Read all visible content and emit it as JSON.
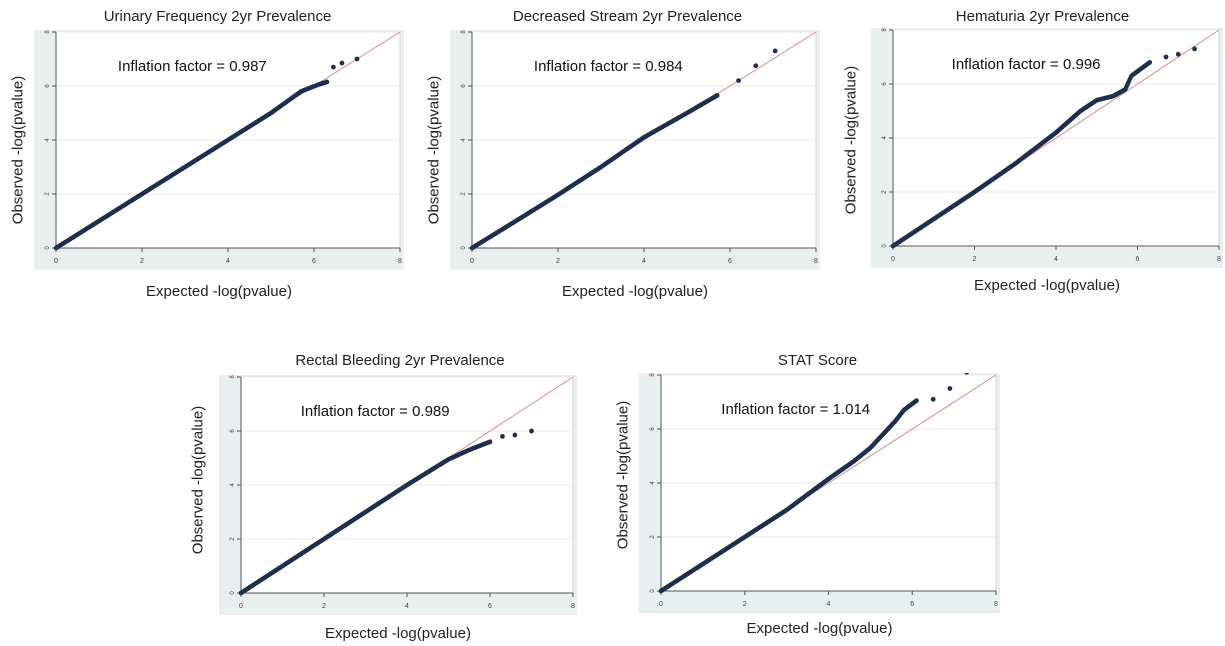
{
  "chart_data": [
    {
      "type": "scatter",
      "title": "Urinary Frequency 2yr Prevalence",
      "xlabel": "Expected -log(pvalue)",
      "ylabel": "Observed -log(pvalue)",
      "annotation": "Inflation factor = 0.987",
      "xlim": [
        0,
        8
      ],
      "ylim": [
        0,
        8
      ],
      "xticks": [
        0,
        2,
        4,
        6,
        8
      ],
      "yticks": [
        0,
        2,
        4,
        6,
        8
      ],
      "reference_line": "y=x",
      "points": [
        [
          0,
          0
        ],
        [
          1,
          1
        ],
        [
          2,
          2
        ],
        [
          3,
          3
        ],
        [
          4,
          4
        ],
        [
          5,
          5
        ],
        [
          5.7,
          5.8
        ],
        [
          6.1,
          6.05
        ],
        [
          6.3,
          6.15
        ],
        [
          6.45,
          6.7
        ],
        [
          6.65,
          6.85
        ],
        [
          7,
          7
        ]
      ]
    },
    {
      "type": "scatter",
      "title": "Decreased Stream 2yr Prevalence",
      "xlabel": "Expected -log(pvalue)",
      "ylabel": "Observed -log(pvalue)",
      "annotation": "Inflation factor = 0.984",
      "xlim": [
        0,
        8
      ],
      "ylim": [
        0,
        8
      ],
      "xticks": [
        0,
        2,
        4,
        6,
        8
      ],
      "yticks": [
        0,
        2,
        4,
        6,
        8
      ],
      "reference_line": "y=x",
      "points": [
        [
          0,
          0
        ],
        [
          1,
          0.98
        ],
        [
          2,
          1.97
        ],
        [
          3,
          3
        ],
        [
          4,
          4.1
        ],
        [
          5,
          5
        ],
        [
          5.7,
          5.65
        ],
        [
          6.2,
          6.2
        ],
        [
          6.6,
          6.75
        ],
        [
          7.05,
          7.3
        ]
      ]
    },
    {
      "type": "scatter",
      "title": "Hematuria 2yr Prevalence",
      "xlabel": "Expected -log(pvalue)",
      "ylabel": "Observed -log(pvalue)",
      "annotation": "Inflation factor = 0.996",
      "xlim": [
        0,
        8
      ],
      "ylim": [
        0,
        8
      ],
      "xticks": [
        0,
        2,
        4,
        6,
        8
      ],
      "yticks": [
        0,
        2,
        4,
        6,
        8
      ],
      "reference_line": "y=x",
      "points": [
        [
          0,
          0
        ],
        [
          1,
          1
        ],
        [
          2,
          2
        ],
        [
          3,
          3.05
        ],
        [
          4,
          4.2
        ],
        [
          4.6,
          5
        ],
        [
          5,
          5.4
        ],
        [
          5.4,
          5.55
        ],
        [
          5.7,
          5.8
        ],
        [
          5.85,
          6.3
        ],
        [
          6.3,
          6.8
        ],
        [
          6.7,
          7
        ],
        [
          7,
          7.1
        ],
        [
          7.4,
          7.3
        ]
      ]
    },
    {
      "type": "scatter",
      "title": "Rectal Bleeding 2yr Prevalence",
      "xlabel": "Expected -log(pvalue)",
      "ylabel": "Observed -log(pvalue)",
      "annotation": "Inflation factor = 0.989",
      "xlim": [
        0,
        8
      ],
      "ylim": [
        0,
        8
      ],
      "xticks": [
        0,
        2,
        4,
        6,
        8
      ],
      "yticks": [
        0,
        2,
        4,
        6,
        8
      ],
      "reference_line": "y=x",
      "points": [
        [
          0,
          0
        ],
        [
          1,
          1
        ],
        [
          2,
          2
        ],
        [
          3,
          3
        ],
        [
          4,
          4
        ],
        [
          5,
          4.95
        ],
        [
          5.5,
          5.3
        ],
        [
          6,
          5.6
        ],
        [
          6.3,
          5.8
        ],
        [
          6.6,
          5.85
        ],
        [
          7,
          6
        ]
      ]
    },
    {
      "type": "scatter",
      "title": "STAT Score",
      "xlabel": "Expected -log(pvalue)",
      "ylabel": "Observed -log(pvalue)",
      "annotation": "Inflation factor = 1.014",
      "xlim": [
        0,
        8
      ],
      "ylim": [
        0,
        8
      ],
      "xticks": [
        0,
        2,
        4,
        6,
        8
      ],
      "yticks": [
        0,
        2,
        4,
        6,
        8
      ],
      "reference_line": "y=x",
      "points": [
        [
          0,
          0
        ],
        [
          1,
          1
        ],
        [
          2,
          2
        ],
        [
          3,
          3
        ],
        [
          4,
          4.15
        ],
        [
          4.6,
          4.8
        ],
        [
          5,
          5.3
        ],
        [
          5.3,
          5.8
        ],
        [
          5.6,
          6.3
        ],
        [
          5.8,
          6.7
        ],
        [
          6.1,
          7.05
        ],
        [
          6.5,
          7.1
        ],
        [
          6.9,
          7.5
        ],
        [
          7.3,
          8.1
        ]
      ]
    }
  ],
  "colors": {
    "point": "#1e2f50",
    "reference_line": "#d98a8a",
    "plot_bg": "#e9efef",
    "grid": "#ffffff",
    "axis": "#555555"
  }
}
